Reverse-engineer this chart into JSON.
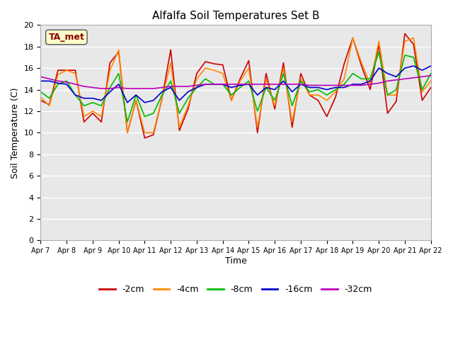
{
  "title": "Alfalfa Soil Temperatures Set B",
  "xlabel": "Time",
  "ylabel": "Soil Temperature (C)",
  "ylim": [
    0,
    20
  ],
  "yticks": [
    0,
    2,
    4,
    6,
    8,
    10,
    12,
    14,
    16,
    18,
    20
  ],
  "date_labels": [
    "Apr 7",
    "Apr 8",
    "Apr 9",
    "Apr 10",
    "Apr 11",
    "Apr 12",
    "Apr 13",
    "Apr 14",
    "Apr 15",
    "Apr 16",
    "Apr 17",
    "Apr 18",
    "Apr 19",
    "Apr 20",
    "Apr 21",
    "Apr 22"
  ],
  "annotation": "TA_met",
  "colors": {
    "-2cm": "#cc0000",
    "-4cm": "#ff8800",
    "-8cm": "#00bb00",
    "-16cm": "#0000cc",
    "-32cm": "#bb00bb"
  },
  "legend_labels": [
    "-2cm",
    "-4cm",
    "-8cm",
    "-16cm",
    "-32cm"
  ],
  "series": {
    "-2cm": [
      13.0,
      12.6,
      15.8,
      15.8,
      15.8,
      11.0,
      11.8,
      11.0,
      16.5,
      17.5,
      10.0,
      13.0,
      9.5,
      9.8,
      13.2,
      17.7,
      10.2,
      12.2,
      15.5,
      16.6,
      16.4,
      16.3,
      13.0,
      15.0,
      16.7,
      10.0,
      15.5,
      12.2,
      16.5,
      10.5,
      15.5,
      13.5,
      13.0,
      11.5,
      13.3,
      16.4,
      18.8,
      16.2,
      14.0,
      18.2,
      11.8,
      12.9,
      19.2,
      18.2,
      13.0,
      14.2
    ],
    "-4cm": [
      13.3,
      12.5,
      15.4,
      15.8,
      15.5,
      11.5,
      12.0,
      11.5,
      15.8,
      17.7,
      10.0,
      13.0,
      10.0,
      10.0,
      13.2,
      16.5,
      10.5,
      12.5,
      15.0,
      16.0,
      15.8,
      15.5,
      13.0,
      14.8,
      16.0,
      10.5,
      15.0,
      12.5,
      16.0,
      11.0,
      15.0,
      13.5,
      13.5,
      13.0,
      13.8,
      15.0,
      18.8,
      16.5,
      14.5,
      18.5,
      13.5,
      13.5,
      18.5,
      18.8,
      13.8,
      14.8
    ],
    "-8cm": [
      13.8,
      13.2,
      14.5,
      14.8,
      13.5,
      12.5,
      12.8,
      12.5,
      14.2,
      15.5,
      11.0,
      13.5,
      11.5,
      11.8,
      13.5,
      14.8,
      11.8,
      13.2,
      14.2,
      15.0,
      14.5,
      14.5,
      13.5,
      14.2,
      14.8,
      12.0,
      14.2,
      13.0,
      15.5,
      12.5,
      14.8,
      13.8,
      14.0,
      13.5,
      14.0,
      14.5,
      15.5,
      15.0,
      15.0,
      17.5,
      13.5,
      14.0,
      17.2,
      17.0,
      14.0,
      15.5
    ],
    "-16cm": [
      14.8,
      14.8,
      14.6,
      14.5,
      13.5,
      13.2,
      13.2,
      13.0,
      13.8,
      14.5,
      12.8,
      13.5,
      12.8,
      13.0,
      13.8,
      14.2,
      13.0,
      13.8,
      14.2,
      14.5,
      14.5,
      14.5,
      14.2,
      14.4,
      14.5,
      13.5,
      14.2,
      14.0,
      14.8,
      13.8,
      14.5,
      14.2,
      14.2,
      14.0,
      14.2,
      14.2,
      14.5,
      14.5,
      14.8,
      16.0,
      15.5,
      15.2,
      16.0,
      16.2,
      15.8,
      16.2
    ],
    "-32cm": [
      15.2,
      15.0,
      14.8,
      14.7,
      14.5,
      14.3,
      14.2,
      14.1,
      14.1,
      14.2,
      14.1,
      14.1,
      14.1,
      14.1,
      14.2,
      14.3,
      14.3,
      14.3,
      14.4,
      14.5,
      14.5,
      14.5,
      14.5,
      14.5,
      14.5,
      14.5,
      14.5,
      14.5,
      14.5,
      14.5,
      14.5,
      14.4,
      14.4,
      14.4,
      14.4,
      14.4,
      14.4,
      14.4,
      14.5,
      14.6,
      14.8,
      14.9,
      15.0,
      15.1,
      15.2,
      15.3
    ]
  }
}
